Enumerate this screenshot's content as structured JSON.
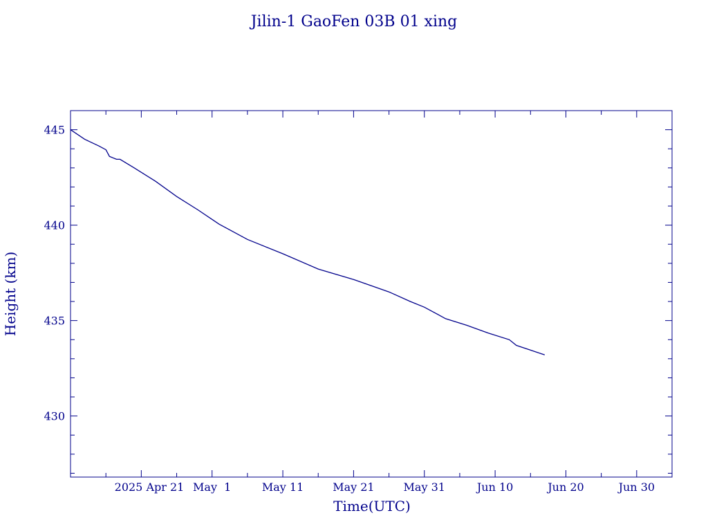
{
  "chart_data": {
    "type": "line",
    "title": "Jilin-1 GaoFen 03B 01 xing",
    "xlabel": "Time(UTC)",
    "ylabel": "Height (km)",
    "x_axis_range": [
      "2025-04-11",
      "2025-07-05"
    ],
    "ylim": [
      426.8,
      446
    ],
    "x_ticks": [
      {
        "date": "2025-04-21",
        "label": "2025 Apr 21"
      },
      {
        "date": "2025-05-01",
        "label": "May  1"
      },
      {
        "date": "2025-05-11",
        "label": "May 11"
      },
      {
        "date": "2025-05-21",
        "label": "May 21"
      },
      {
        "date": "2025-05-31",
        "label": "May 31"
      },
      {
        "date": "2025-06-10",
        "label": "Jun 10"
      },
      {
        "date": "2025-06-20",
        "label": "Jun 20"
      },
      {
        "date": "2025-06-30",
        "label": "Jun 30"
      }
    ],
    "y_ticks": [
      430,
      435,
      440,
      445
    ],
    "grid": false,
    "colors": {
      "axis": "#00008b",
      "line": "#00008b"
    },
    "series": [
      {
        "name": "",
        "points": [
          [
            "2025-04-11",
            445.0
          ],
          [
            "2025-04-13",
            444.5
          ],
          [
            "2025-04-15",
            444.15
          ],
          [
            "2025-04-16",
            443.95
          ],
          [
            "2025-04-16T12:00",
            443.6
          ],
          [
            "2025-04-17T12:00",
            443.45
          ],
          [
            "2025-04-18",
            443.45
          ],
          [
            "2025-04-20",
            443.0
          ],
          [
            "2025-04-23",
            442.3
          ],
          [
            "2025-04-26",
            441.5
          ],
          [
            "2025-04-29",
            440.8
          ],
          [
            "2025-05-01",
            440.3
          ],
          [
            "2025-05-02",
            440.05
          ],
          [
            "2025-05-06",
            439.25
          ],
          [
            "2025-05-11",
            438.5
          ],
          [
            "2025-05-16",
            437.7
          ],
          [
            "2025-05-21",
            437.15
          ],
          [
            "2025-05-26",
            436.5
          ],
          [
            "2025-05-29",
            436.0
          ],
          [
            "2025-05-31",
            435.7
          ],
          [
            "2025-06-01",
            435.5
          ],
          [
            "2025-06-03",
            435.1
          ],
          [
            "2025-06-06",
            434.75
          ],
          [
            "2025-06-09",
            434.35
          ],
          [
            "2025-06-12",
            434.0
          ],
          [
            "2025-06-13",
            433.7
          ],
          [
            "2025-06-15",
            433.45
          ],
          [
            "2025-06-17",
            433.2
          ]
        ]
      }
    ]
  }
}
